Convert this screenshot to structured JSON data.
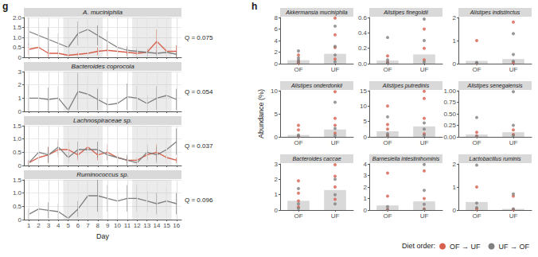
{
  "chart_data": [
    {
      "type": "line",
      "panel_label": "g",
      "title": "A. muciniphila",
      "x": [
        1,
        2,
        3,
        4,
        5,
        6,
        7,
        8,
        9,
        10,
        11,
        12,
        13,
        14,
        15,
        16
      ],
      "xlim": [
        0.5,
        16.5
      ],
      "xticks": [
        1,
        2,
        3,
        4,
        5,
        6,
        7,
        8,
        9,
        10,
        11,
        12,
        13,
        14,
        15,
        16
      ],
      "ylim": [
        0,
        2
      ],
      "yticks": [
        0,
        0.5,
        {
          "value": 1,
          "label": "1.0"
        },
        1.5,
        {
          "value": 2,
          "label": "2.0"
        }
      ],
      "grid": true,
      "tick_labels": "y",
      "shaded_ranges": [
        [
          4.5,
          8.5
        ],
        [
          11.5,
          15.5
        ]
      ],
      "annotations": [
        "Q = 0.075"
      ],
      "series": [
        {
          "name": "OF → UF",
          "color": "#d6604d",
          "line_style": "solid",
          "values": [
            0.4,
            0.5,
            0.2,
            0.2,
            0.1,
            0.15,
            0.2,
            0.3,
            0.35,
            0.3,
            0.25,
            0.2,
            0.25,
            0.8,
            0.3,
            0.3
          ],
          "errors": [
            0.3,
            0.4,
            0.2,
            0.2,
            0.1,
            0.1,
            0.15,
            0.2,
            0.3,
            0.2,
            0.2,
            0.2,
            0.2,
            0.6,
            0.3,
            0.3
          ]
        },
        {
          "name": "UF → OF",
          "color": "#7f7f7f",
          "line_style": "solid",
          "values": [
            1.3,
            1.1,
            0.9,
            0.7,
            0.5,
            1.2,
            1.4,
            1.1,
            0.8,
            0.5,
            0.35,
            0.3,
            0.25,
            0.2,
            0.25,
            0.15
          ],
          "errors": [
            0.7,
            0.6,
            0.6,
            0.5,
            0.3,
            0.6,
            0.6,
            0.5,
            0.5,
            0.3,
            0.2,
            0.2,
            0.2,
            0.15,
            0.2,
            0.1
          ]
        }
      ]
    },
    {
      "type": "line",
      "title": "Bacteroides coprocola",
      "x": [
        1,
        2,
        3,
        4,
        5,
        6,
        7,
        8,
        9,
        10,
        11,
        12,
        13,
        14,
        15,
        16
      ],
      "xlim": [
        0.5,
        16.5
      ],
      "xticks": [
        1,
        2,
        3,
        4,
        5,
        6,
        7,
        8,
        9,
        10,
        11,
        12,
        13,
        14,
        15,
        16
      ],
      "ylim": [
        0,
        3
      ],
      "yticks": [
        0,
        1,
        2,
        3
      ],
      "grid": true,
      "tick_labels": "y",
      "shaded_ranges": [
        [
          4.5,
          8.5
        ],
        [
          11.5,
          15.5
        ]
      ],
      "annotations": [
        "Q = 0.054"
      ],
      "series": [
        {
          "name": "UF → OF",
          "color": "#7f7f7f",
          "line_style": "solid",
          "values": [
            1.0,
            1.0,
            0.9,
            1.0,
            0.1,
            1.5,
            1.3,
            0.9,
            0.5,
            0.6,
            1.1,
            1.0,
            0.6,
            1.0,
            1.2,
            0.9
          ],
          "errors": [
            1.0,
            0.9,
            0.9,
            0.9,
            0.1,
            1.4,
            1.2,
            0.8,
            0.5,
            0.6,
            1.0,
            0.9,
            0.6,
            0.9,
            1.0,
            0.8
          ]
        }
      ]
    },
    {
      "type": "line",
      "title": "Lachnospiraceae sp.",
      "x": [
        1,
        2,
        3,
        4,
        5,
        6,
        7,
        8,
        9,
        10,
        11,
        12,
        13,
        14,
        15,
        16
      ],
      "xlim": [
        0.5,
        16.5
      ],
      "xticks": [
        1,
        2,
        3,
        4,
        5,
        6,
        7,
        8,
        9,
        10,
        11,
        12,
        13,
        14,
        15,
        16
      ],
      "ylim": [
        0,
        1.5
      ],
      "yticks": [
        0,
        0.5,
        {
          "value": 1,
          "label": "1.0"
        },
        1.5
      ],
      "grid": true,
      "tick_labels": "y",
      "shaded_ranges": [
        [
          4.5,
          8.5
        ],
        [
          11.5,
          15.5
        ]
      ],
      "annotations": [
        "Q = 0.037"
      ],
      "series": [
        {
          "name": "OF → UF",
          "color": "#d6604d",
          "line_style": "solid",
          "values": [
            0.1,
            0.3,
            0.4,
            0.6,
            0.6,
            0.4,
            0.7,
            0.4,
            0.5,
            0.3,
            0.2,
            0.2,
            0.4,
            0.5,
            0.3,
            0.2
          ],
          "errors": [
            0.1,
            0.2,
            0.3,
            0.3,
            0.3,
            0.2,
            0.3,
            0.2,
            0.3,
            0.2,
            0.1,
            0.1,
            0.2,
            0.3,
            0.2,
            0.1
          ]
        },
        {
          "name": "UF → OF",
          "color": "#7f7f7f",
          "line_style": "solid",
          "values": [
            0.1,
            0.5,
            0.4,
            0.7,
            0.3,
            0.6,
            0.6,
            0.6,
            0.4,
            0.3,
            0.2,
            0.1,
            0.5,
            0.4,
            0.6,
            0.9
          ],
          "errors": [
            0.1,
            0.3,
            0.3,
            0.3,
            0.2,
            0.3,
            0.3,
            0.3,
            0.2,
            0.2,
            0.2,
            0.1,
            0.3,
            0.3,
            0.4,
            0.5
          ]
        }
      ]
    },
    {
      "type": "line",
      "title": "Ruminococcus sp.",
      "x_label": "Day",
      "x": [
        1,
        2,
        3,
        4,
        5,
        6,
        7,
        8,
        9,
        10,
        11,
        12,
        13,
        14,
        15,
        16
      ],
      "xlim": [
        0.5,
        16.5
      ],
      "xticks": [
        1,
        2,
        3,
        4,
        5,
        6,
        7,
        8,
        9,
        10,
        11,
        12,
        13,
        14,
        15,
        16
      ],
      "ylim": [
        0,
        1.5
      ],
      "yticks": [
        0,
        0.5,
        {
          "value": 1,
          "label": "1.0"
        },
        1.5
      ],
      "grid": true,
      "shaded_ranges": [
        [
          4.5,
          8.5
        ],
        [
          11.5,
          15.5
        ]
      ],
      "annotations": [
        "Q = 0.096"
      ],
      "series": [
        {
          "name": "UF → OF",
          "color": "#7f7f7f",
          "line_style": "solid",
          "values": [
            0.2,
            0.4,
            0.35,
            0.3,
            0.05,
            0.4,
            0.9,
            0.9,
            0.8,
            0.7,
            0.8,
            0.8,
            0.7,
            0.6,
            0.7,
            0.6
          ],
          "errors": [
            0.2,
            0.3,
            0.3,
            0.3,
            0.05,
            0.3,
            0.6,
            0.6,
            0.5,
            0.5,
            0.5,
            0.5,
            0.4,
            0.4,
            0.5,
            0.4
          ]
        }
      ]
    },
    {
      "type": "bar",
      "panel_label": "h",
      "title": "Akkermansia muciniphila",
      "categories": [
        "OF",
        "UF"
      ],
      "values": [
        0.6,
        1.7
      ],
      "color": "#d9d9d9",
      "ylim": [
        0,
        8
      ],
      "yticks": [
        0,
        2,
        4,
        6,
        8
      ],
      "grid": false,
      "series": [
        {
          "name": "OF → UF",
          "type": "scatter",
          "marker": "circle",
          "color": "#d6604d",
          "x": [
            "OF",
            "OF",
            "OF",
            "UF",
            "UF",
            "UF",
            "UF"
          ],
          "values": [
            0.1,
            0.4,
            1.5,
            0.8,
            2.8,
            5.0,
            7.9
          ]
        },
        {
          "name": "UF → OF",
          "type": "scatter",
          "marker": "circle",
          "color": "#7f7f7f",
          "x": [
            "OF",
            "OF",
            "OF",
            "OF",
            "UF",
            "UF",
            "UF",
            "UF"
          ],
          "values": [
            0.2,
            0.6,
            1.0,
            2.2,
            0.3,
            1.5,
            3.0,
            6.5
          ]
        }
      ]
    },
    {
      "type": "bar",
      "title": "Alistipes finegoldii",
      "categories": [
        "OF",
        "UF"
      ],
      "values": [
        0.04,
        0.12
      ],
      "color": "#d9d9d9",
      "ylim": [
        0,
        0.6
      ],
      "yticks": [
        {
          "value": 0,
          "label": "0.0"
        },
        0.2,
        0.4,
        0.6
      ],
      "grid": false,
      "series": [
        {
          "name": "OF → UF",
          "type": "scatter",
          "marker": "circle",
          "color": "#d6604d",
          "x": [
            "OF",
            "OF",
            "UF",
            "UF",
            "UF"
          ],
          "values": [
            0.02,
            0.1,
            0.05,
            0.2,
            0.45
          ]
        },
        {
          "name": "UF → OF",
          "type": "scatter",
          "marker": "circle",
          "color": "#7f7f7f",
          "x": [
            "OF",
            "OF",
            "OF",
            "UF",
            "UF",
            "UF"
          ],
          "values": [
            0.01,
            0.34,
            0.05,
            0.02,
            0.3,
            0.58
          ]
        }
      ]
    },
    {
      "type": "bar",
      "title": "Alistipes indistinctus",
      "categories": [
        "OF",
        "UF"
      ],
      "values": [
        0.12,
        0.2
      ],
      "color": "#d9d9d9",
      "ylim": [
        0,
        2
      ],
      "yticks": [
        0,
        1,
        2
      ],
      "grid": false,
      "series": [
        {
          "name": "OF → UF",
          "type": "scatter",
          "marker": "circle",
          "color": "#d6604d",
          "x": [
            "OF",
            "OF",
            "UF",
            "UF"
          ],
          "values": [
            0.02,
            1.0,
            0.05,
            1.8
          ]
        },
        {
          "name": "UF → OF",
          "type": "scatter",
          "marker": "circle",
          "color": "#7f7f7f",
          "x": [
            "OF",
            "OF",
            "UF",
            "UF",
            "UF"
          ],
          "values": [
            0.01,
            0.05,
            0.1,
            1.3,
            0.4
          ]
        }
      ]
    },
    {
      "type": "bar",
      "title": "Alistipes onderdonkii",
      "y_label": "Abundance (%)",
      "categories": [
        "OF",
        "UF"
      ],
      "values": [
        0.4,
        1.6
      ],
      "color": "#d9d9d9",
      "ylim": [
        0,
        10
      ],
      "yticks": [
        0,
        5,
        10
      ],
      "grid": false,
      "series": [
        {
          "name": "OF → UF",
          "type": "scatter",
          "marker": "circle",
          "color": "#d6604d",
          "x": [
            "OF",
            "OF",
            "OF",
            "UF",
            "UF",
            "UF",
            "UF"
          ],
          "values": [
            0.1,
            1.5,
            2.5,
            0.8,
            2.5,
            4.0,
            9.8
          ]
        },
        {
          "name": "UF → OF",
          "type": "scatter",
          "marker": "circle",
          "color": "#7f7f7f",
          "x": [
            "OF",
            "OF",
            "UF",
            "UF",
            "UF"
          ],
          "values": [
            0.05,
            0.4,
            0.3,
            1.8,
            7.5
          ]
        }
      ]
    },
    {
      "type": "bar",
      "title": "Alistipes putredinis",
      "categories": [
        "OF",
        "UF"
      ],
      "values": [
        1.8,
        3.4
      ],
      "color": "#d9d9d9",
      "ylim": [
        0,
        15
      ],
      "yticks": [
        0,
        5,
        10,
        15
      ],
      "grid": false,
      "series": [
        {
          "name": "OF → UF",
          "type": "scatter",
          "marker": "circle",
          "color": "#d6604d",
          "x": [
            "OF",
            "OF",
            "OF",
            "OF",
            "UF",
            "UF",
            "UF",
            "UF"
          ],
          "values": [
            0.5,
            2.5,
            4.0,
            10.0,
            1.0,
            6.0,
            12.5,
            14.8
          ]
        },
        {
          "name": "UF → OF",
          "type": "scatter",
          "marker": "circle",
          "color": "#7f7f7f",
          "x": [
            "OF",
            "OF",
            "OF",
            "UF",
            "UF",
            "UF"
          ],
          "values": [
            0.2,
            1.0,
            6.5,
            0.5,
            2.5,
            4.5
          ]
        }
      ]
    },
    {
      "type": "bar",
      "title": "Alistipes senegalensis",
      "categories": [
        "OF",
        "UF"
      ],
      "values": [
        0.05,
        0.1
      ],
      "color": "#d9d9d9",
      "ylim": [
        0,
        1
      ],
      "yticks": [
        {
          "value": 0,
          "label": "0.00"
        },
        0.25,
        {
          "value": 0.5,
          "label": "0.50"
        },
        0.75,
        {
          "value": 1,
          "label": "1.00"
        }
      ],
      "grid": false,
      "series": [
        {
          "name": "OF → UF",
          "type": "scatter",
          "marker": "circle",
          "color": "#d6604d",
          "x": [
            "OF",
            "OF",
            "UF",
            "UF"
          ],
          "values": [
            0.02,
            0.1,
            0.05,
            0.15
          ]
        },
        {
          "name": "UF → OF",
          "type": "scatter",
          "marker": "circle",
          "color": "#7f7f7f",
          "x": [
            "OF",
            "OF",
            "UF",
            "UF",
            "UF"
          ],
          "values": [
            0.01,
            0.42,
            0.03,
            0.25,
            0.98
          ]
        }
      ]
    },
    {
      "type": "bar",
      "title": "Bacteroides caccae",
      "categories": [
        "OF",
        "UF"
      ],
      "values": [
        0.6,
        1.3
      ],
      "color": "#d9d9d9",
      "ylim": [
        0,
        3
      ],
      "yticks": [
        0,
        1,
        2,
        3
      ],
      "grid": false,
      "series": [
        {
          "name": "OF → UF",
          "type": "scatter",
          "marker": "circle",
          "color": "#d6604d",
          "x": [
            "OF",
            "OF",
            "OF",
            "OF",
            "UF",
            "UF",
            "UF",
            "UF"
          ],
          "values": [
            0.2,
            0.6,
            1.1,
            1.9,
            0.7,
            1.5,
            2.2,
            2.95
          ]
        },
        {
          "name": "UF → OF",
          "type": "scatter",
          "marker": "circle",
          "color": "#7f7f7f",
          "x": [
            "OF",
            "OF",
            "OF",
            "UF",
            "UF",
            "UF"
          ],
          "values": [
            0.1,
            0.4,
            1.4,
            0.4,
            1.0,
            2.0
          ]
        }
      ]
    },
    {
      "type": "bar",
      "title": "Barnesiella intestinihominis",
      "categories": [
        "OF",
        "UF"
      ],
      "values": [
        0.4,
        0.75
      ],
      "color": "#d9d9d9",
      "ylim": [
        0,
        4
      ],
      "yticks": [
        0,
        1,
        2,
        3,
        4
      ],
      "grid": false,
      "series": [
        {
          "name": "OF → UF",
          "type": "scatter",
          "marker": "circle",
          "color": "#d6604d",
          "x": [
            "OF",
            "OF",
            "OF",
            "UF",
            "UF",
            "UF"
          ],
          "values": [
            0.05,
            1.2,
            3.2,
            0.1,
            1.0,
            3.4
          ]
        },
        {
          "name": "UF → OF",
          "type": "scatter",
          "marker": "circle",
          "color": "#7f7f7f",
          "x": [
            "OF",
            "OF",
            "UF",
            "UF",
            "UF",
            "UF"
          ],
          "values": [
            0.02,
            0.3,
            0.05,
            0.5,
            1.7,
            3.95
          ]
        }
      ]
    },
    {
      "type": "bar",
      "title": "Lactobacillus ruminis",
      "categories": [
        "OF",
        "UF"
      ],
      "values": [
        0.35,
        0.05
      ],
      "color": "#d9d9d9",
      "ylim": [
        0,
        2
      ],
      "yticks": [
        0,
        1,
        2
      ],
      "grid": false,
      "legend": "bottom-right",
      "annotations": [
        "Diet order:"
      ],
      "series": [
        {
          "name": "OF → UF",
          "type": "scatter",
          "marker": "circle",
          "color": "#d6604d",
          "x": [
            "OF",
            "OF",
            "UF",
            "UF"
          ],
          "values": [
            0.05,
            1.0,
            0.02,
            0.6
          ]
        },
        {
          "name": "UF → OF",
          "type": "scatter",
          "marker": "circle",
          "color": "#7f7f7f",
          "x": [
            "OF",
            "OF",
            "OF",
            "UF",
            "UF"
          ],
          "values": [
            0.1,
            1.95,
            0.3,
            0.05,
            0.7
          ]
        }
      ]
    }
  ]
}
